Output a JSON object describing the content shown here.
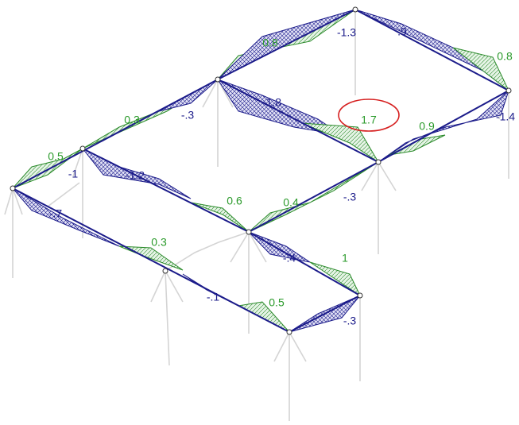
{
  "diagram": {
    "green_labels": [
      "0.8",
      "0.8",
      "1.7",
      "0.9",
      "0.3",
      "0.5",
      "0.6",
      "0.4",
      "0.3",
      "1",
      "0.5"
    ],
    "blue_labels": [
      "-1.3",
      ".9",
      "-1.8",
      "-.3",
      "-1.4",
      "-1",
      "-1.2",
      "-.3",
      "-.7",
      "-.4",
      "-.1",
      "-.3"
    ]
  }
}
